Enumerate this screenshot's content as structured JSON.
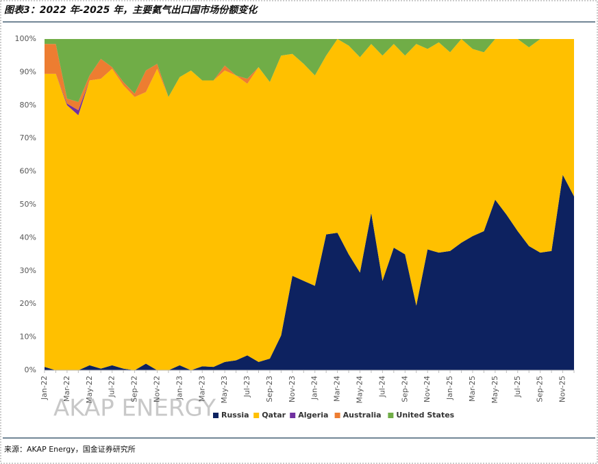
{
  "header": {
    "title": "图表3：2022 年-2025 年，主要氦气出口国市场份额变化"
  },
  "footer": {
    "source": "来源：AKAP Energy，国金证券研究所"
  },
  "chart_data": {
    "type": "stacked_area",
    "watermark": "AKAP ENERGY",
    "categories": [
      "Jan-22",
      null,
      "Mar-22",
      null,
      "May-22",
      null,
      "Jul-22",
      null,
      "Sep-22",
      null,
      "Nov-22",
      null,
      "Jan-23",
      null,
      "Mar-23",
      null,
      "May-23",
      null,
      "Jul-23",
      null,
      "Sep-23",
      null,
      "Nov-23",
      null,
      "Jan-24",
      null,
      "Mar-24",
      null,
      "May-24",
      null,
      "Jul-24",
      null,
      "Sep-24",
      null,
      "Nov-24",
      null,
      "Jan-25",
      null,
      "Mar-25",
      null,
      "May-25",
      null,
      "Jul-25",
      null,
      "Sep-25",
      null,
      "Nov-25",
      null
    ],
    "series": [
      {
        "name": "Russia",
        "color": "#0d2260",
        "values": [
          1,
          0,
          0,
          0,
          1.5,
          0.5,
          1.5,
          0.5,
          0,
          2,
          0,
          0,
          1.5,
          0,
          1.2,
          1,
          2.5,
          3,
          4.5,
          2.5,
          3.5,
          10.5,
          28.5,
          27,
          25.5,
          41,
          41.5,
          35,
          29.5,
          47.5,
          27,
          37,
          35,
          19.5,
          36.5,
          35.5,
          36,
          38.5,
          40.5,
          42,
          51.5,
          47,
          42,
          37.5,
          35.5,
          36,
          59,
          52.5
        ]
      },
      {
        "name": "Qatar",
        "color": "#ffc000",
        "values": [
          88.5,
          89.5,
          80,
          77,
          86,
          87.5,
          89.5,
          85.5,
          82.5,
          82,
          91,
          82.5,
          87,
          90.5,
          86.3,
          86.5,
          88,
          86,
          82,
          89,
          83.5,
          84.5,
          67,
          65.5,
          63.5,
          54,
          58.5,
          63,
          65,
          51,
          68,
          61.5,
          60,
          79,
          60.5,
          63.5,
          60,
          61.5,
          56.5,
          54,
          48.5,
          53,
          58,
          60,
          64.5,
          64,
          41,
          47.5
        ]
      },
      {
        "name": "Algeria",
        "color": "#7030a0",
        "values": [
          0,
          0,
          0.5,
          1.5,
          0,
          0,
          0,
          0,
          0,
          0,
          0,
          0,
          0,
          0,
          0,
          0,
          0,
          0,
          0,
          0,
          0,
          0,
          0,
          0,
          0,
          0,
          0,
          0,
          0,
          0,
          0,
          0,
          0,
          0,
          0,
          0,
          0,
          0,
          0,
          0,
          0,
          0,
          0,
          0,
          0,
          0,
          0,
          0
        ]
      },
      {
        "name": "Australia",
        "color": "#ed7d31",
        "values": [
          9,
          9,
          1.5,
          2.5,
          1.5,
          6,
          0.5,
          1,
          1,
          6.5,
          1.5,
          0,
          0,
          0,
          0,
          0,
          1.5,
          0,
          1.5,
          0,
          0,
          0,
          0,
          0,
          0,
          0,
          0,
          0,
          0,
          0,
          0,
          0,
          0,
          0,
          0,
          0,
          0,
          0,
          0,
          0,
          0,
          0,
          0,
          0,
          0,
          0,
          0,
          0
        ]
      },
      {
        "name": "United States",
        "color": "#70ad47",
        "values": [
          1.5,
          1.5,
          18,
          19,
          11,
          6,
          8.5,
          13,
          16.5,
          9.5,
          7.5,
          17.5,
          11.5,
          9.5,
          12.5,
          12.5,
          8,
          11,
          12,
          8.5,
          13,
          5,
          4.5,
          7.5,
          11,
          5,
          0,
          2,
          5.5,
          1.5,
          5,
          1.5,
          5,
          1.5,
          3,
          1,
          4,
          0,
          3,
          4,
          0,
          0,
          0,
          2.5,
          0,
          0,
          0,
          0
        ]
      }
    ],
    "ylim": [
      0,
      100
    ],
    "yticks": [
      {
        "value": 0,
        "label": "0%"
      },
      {
        "value": 10,
        "label": "10%"
      },
      {
        "value": 20,
        "label": "20%"
      },
      {
        "value": 30,
        "label": "30%"
      },
      {
        "value": 40,
        "label": "40%"
      },
      {
        "value": 50,
        "label": "50%"
      },
      {
        "value": 60,
        "label": "60%"
      },
      {
        "value": 70,
        "label": "70%"
      },
      {
        "value": 80,
        "label": "80%"
      },
      {
        "value": 90,
        "label": "90%"
      },
      {
        "value": 100,
        "label": "100%"
      }
    ],
    "grid": false,
    "legend": "bottom"
  }
}
